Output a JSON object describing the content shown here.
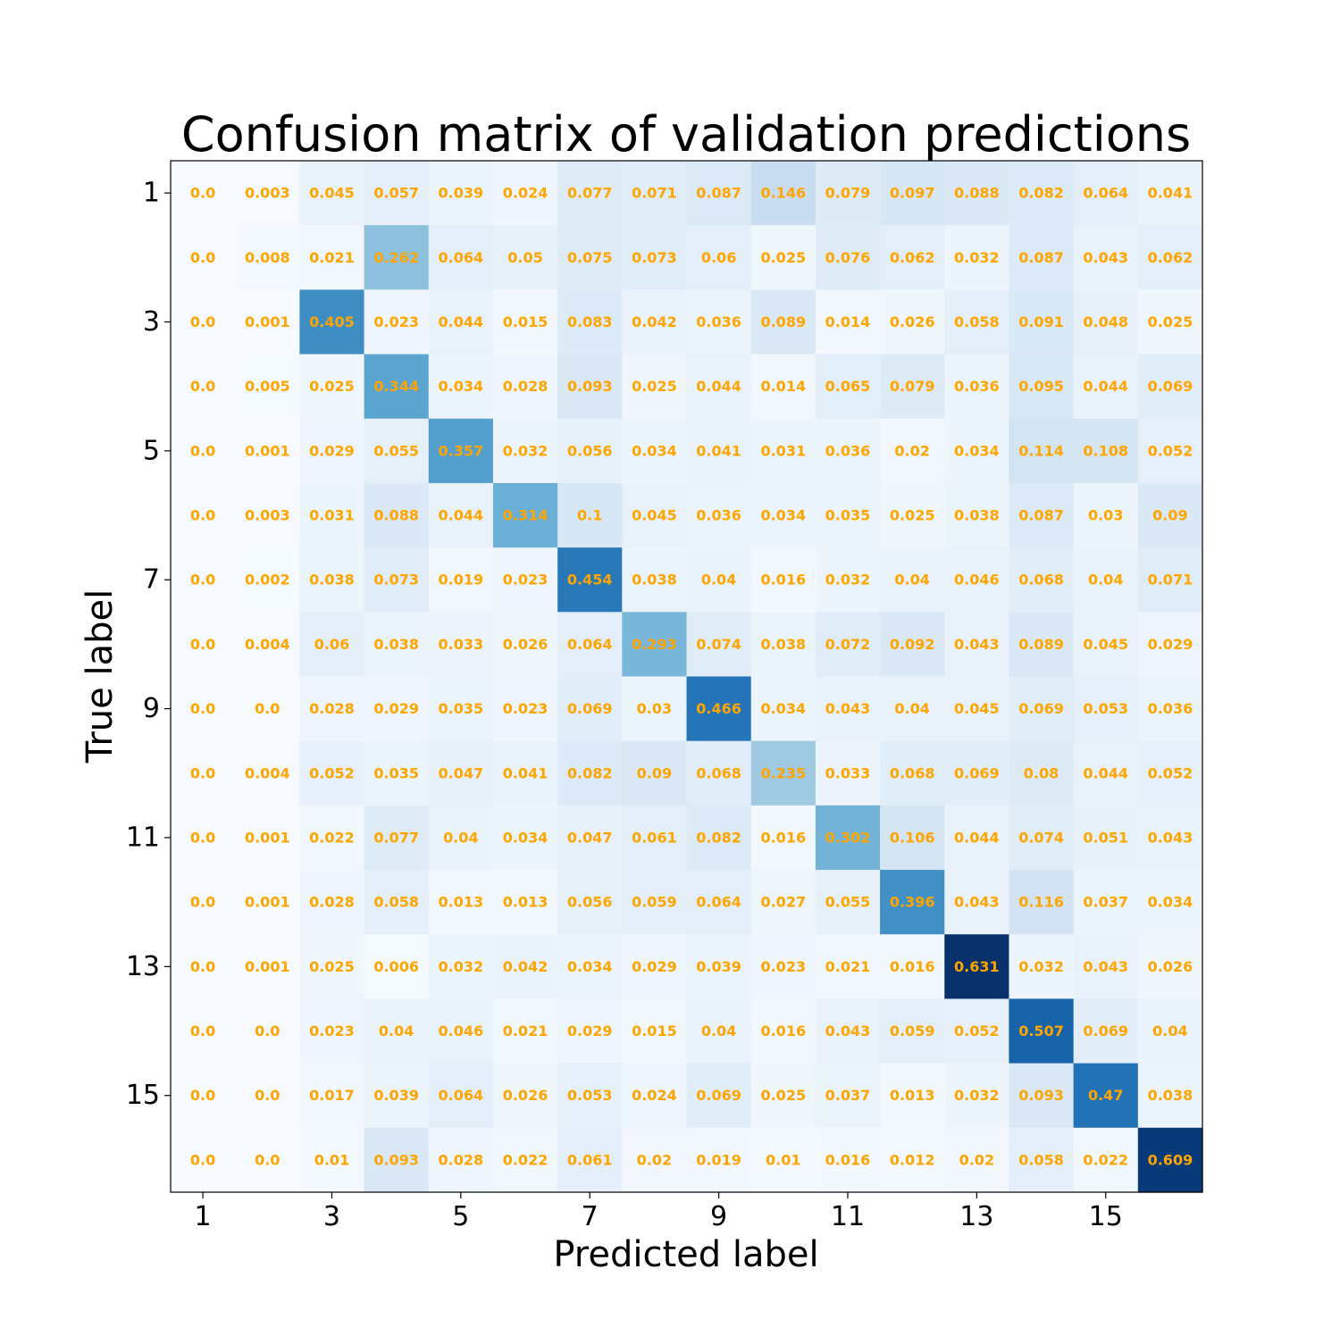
{
  "chart_data": {
    "type": "heatmap",
    "title": "Confusion matrix of validation predictions",
    "xlabel": "Predicted label",
    "ylabel": "True label",
    "x_tick_labels": [
      "1",
      "3",
      "5",
      "7",
      "9",
      "11",
      "13",
      "15"
    ],
    "y_tick_labels": [
      "1",
      "3",
      "5",
      "7",
      "9",
      "11",
      "13",
      "15"
    ],
    "x_tick_positions": [
      1,
      3,
      5,
      7,
      9,
      11,
      13,
      15
    ],
    "y_tick_positions": [
      1,
      3,
      5,
      7,
      9,
      11,
      13,
      15
    ],
    "classes": [
      1,
      2,
      3,
      4,
      5,
      6,
      7,
      8,
      9,
      10,
      11,
      12,
      13,
      14,
      15,
      16
    ],
    "colormap": "Blues",
    "value_range": [
      0.0,
      0.631
    ],
    "annotation_color": "#ffa500",
    "colorbar": false,
    "grid": false,
    "matrix": [
      [
        "0.0",
        "0.003",
        "0.045",
        "0.057",
        "0.039",
        "0.024",
        "0.077",
        "0.071",
        "0.087",
        "0.146",
        "0.079",
        "0.097",
        "0.088",
        "0.082",
        "0.064",
        "0.041"
      ],
      [
        "0.0",
        "0.008",
        "0.021",
        "0.262",
        "0.064",
        "0.05",
        "0.075",
        "0.073",
        "0.06",
        "0.025",
        "0.076",
        "0.062",
        "0.032",
        "0.087",
        "0.043",
        "0.062"
      ],
      [
        "0.0",
        "0.001",
        "0.405",
        "0.023",
        "0.044",
        "0.015",
        "0.083",
        "0.042",
        "0.036",
        "0.089",
        "0.014",
        "0.026",
        "0.058",
        "0.091",
        "0.048",
        "0.025"
      ],
      [
        "0.0",
        "0.005",
        "0.025",
        "0.344",
        "0.034",
        "0.028",
        "0.093",
        "0.025",
        "0.044",
        "0.014",
        "0.065",
        "0.079",
        "0.036",
        "0.095",
        "0.044",
        "0.069"
      ],
      [
        "0.0",
        "0.001",
        "0.029",
        "0.055",
        "0.357",
        "0.032",
        "0.056",
        "0.034",
        "0.041",
        "0.031",
        "0.036",
        "0.02",
        "0.034",
        "0.114",
        "0.108",
        "0.052"
      ],
      [
        "0.0",
        "0.003",
        "0.031",
        "0.088",
        "0.044",
        "0.314",
        "0.1",
        "0.045",
        "0.036",
        "0.034",
        "0.035",
        "0.025",
        "0.038",
        "0.087",
        "0.03",
        "0.09"
      ],
      [
        "0.0",
        "0.002",
        "0.038",
        "0.073",
        "0.019",
        "0.023",
        "0.454",
        "0.038",
        "0.04",
        "0.016",
        "0.032",
        "0.04",
        "0.046",
        "0.068",
        "0.04",
        "0.071"
      ],
      [
        "0.0",
        "0.004",
        "0.06",
        "0.038",
        "0.033",
        "0.026",
        "0.064",
        "0.293",
        "0.074",
        "0.038",
        "0.072",
        "0.092",
        "0.043",
        "0.089",
        "0.045",
        "0.029"
      ],
      [
        "0.0",
        "0.0",
        "0.028",
        "0.029",
        "0.035",
        "0.023",
        "0.069",
        "0.03",
        "0.466",
        "0.034",
        "0.043",
        "0.04",
        "0.045",
        "0.069",
        "0.053",
        "0.036"
      ],
      [
        "0.0",
        "0.004",
        "0.052",
        "0.035",
        "0.047",
        "0.041",
        "0.082",
        "0.09",
        "0.068",
        "0.235",
        "0.033",
        "0.068",
        "0.069",
        "0.08",
        "0.044",
        "0.052"
      ],
      [
        "0.0",
        "0.001",
        "0.022",
        "0.077",
        "0.04",
        "0.034",
        "0.047",
        "0.061",
        "0.082",
        "0.016",
        "0.302",
        "0.106",
        "0.044",
        "0.074",
        "0.051",
        "0.043"
      ],
      [
        "0.0",
        "0.001",
        "0.028",
        "0.058",
        "0.013",
        "0.013",
        "0.056",
        "0.059",
        "0.064",
        "0.027",
        "0.055",
        "0.396",
        "0.043",
        "0.116",
        "0.037",
        "0.034"
      ],
      [
        "0.0",
        "0.001",
        "0.025",
        "0.006",
        "0.032",
        "0.042",
        "0.034",
        "0.029",
        "0.039",
        "0.023",
        "0.021",
        "0.016",
        "0.631",
        "0.032",
        "0.043",
        "0.026"
      ],
      [
        "0.0",
        "0.0",
        "0.023",
        "0.04",
        "0.046",
        "0.021",
        "0.029",
        "0.015",
        "0.04",
        "0.016",
        "0.043",
        "0.059",
        "0.052",
        "0.507",
        "0.069",
        "0.04"
      ],
      [
        "0.0",
        "0.0",
        "0.017",
        "0.039",
        "0.064",
        "0.026",
        "0.053",
        "0.024",
        "0.069",
        "0.025",
        "0.037",
        "0.013",
        "0.032",
        "0.093",
        "0.47",
        "0.038"
      ],
      [
        "0.0",
        "0.0",
        "0.01",
        "0.093",
        "0.028",
        "0.022",
        "0.061",
        "0.02",
        "0.019",
        "0.01",
        "0.016",
        "0.012",
        "0.02",
        "0.058",
        "0.022",
        "0.609"
      ]
    ]
  }
}
